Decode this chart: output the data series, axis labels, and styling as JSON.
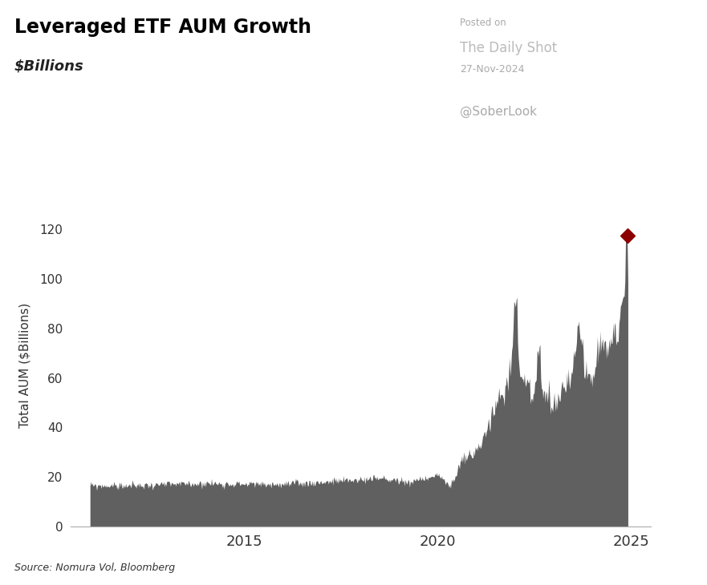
{
  "title": "Leveraged ETF AUM Growth",
  "subtitle": "$Billions",
  "ylabel": "Total AUM ($Billions)",
  "source": "Source: Nomura Vol, Bloomberg",
  "posted_on": "Posted on",
  "daily_shot": "The Daily Shot",
  "date_posted": "27-Nov-2024",
  "soberlook": "@SoberLook",
  "fill_color": "#606060",
  "background_color": "#ffffff",
  "title_fontsize": 17,
  "subtitle_fontsize": 13,
  "ytick_labels": [
    "0",
    "20",
    "40",
    "60",
    "80",
    "100",
    "120"
  ],
  "ytick_values": [
    0,
    20,
    40,
    60,
    80,
    100,
    120
  ],
  "xtick_labels": [
    "2015",
    "2020",
    "2025"
  ],
  "xtick_values": [
    2015,
    2020,
    2025
  ],
  "ylim": [
    0,
    130
  ],
  "xlim_start": 2010.5,
  "xlim_end": 2025.5,
  "marker_color": "#8B0000",
  "marker_value": 117.5,
  "marker_year": 2024.9
}
